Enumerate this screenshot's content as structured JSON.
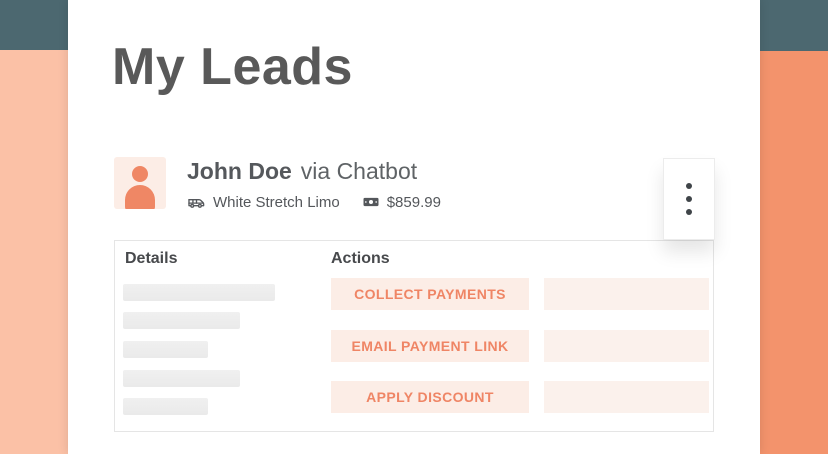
{
  "page": {
    "title": "My Leads"
  },
  "lead": {
    "name": "John Doe",
    "source": "via Chatbot",
    "vehicle": "White Stretch Limo",
    "price": "$859.99"
  },
  "panel": {
    "details_header": "Details",
    "actions_header": "Actions",
    "actions": [
      {
        "label": "COLLECT PAYMENTS"
      },
      {
        "label": "EMAIL PAYMENT LINK"
      },
      {
        "label": "APPLY DISCOUNT"
      }
    ],
    "details_skeleton_widths": [
      152,
      117,
      85,
      117,
      85
    ]
  },
  "icons": {
    "avatar": "person-icon",
    "vehicle": "limo-icon",
    "price": "banknote-icon",
    "menu": "kebab-menu-icon"
  },
  "colors": {
    "accent_coral": "#EF8565",
    "button_bg": "#FCEDE6",
    "teal_corner": "#4C6870",
    "salmon_left": "#FBC1A6",
    "salmon_right": "#F3936C",
    "title_gray": "#595959",
    "text_gray": "#54575B",
    "skeleton_gray": "#EDEDED"
  }
}
